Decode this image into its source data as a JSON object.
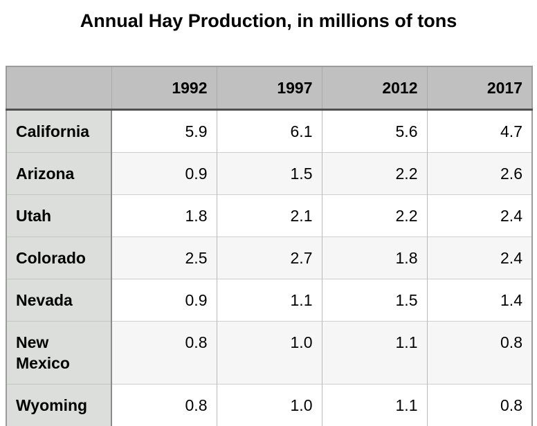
{
  "title": "Annual Hay Production, in millions of tons",
  "colors": {
    "header_bg": "#bfc0bf",
    "label_column_bg": "#dcdedc",
    "alt_row_bg": "#f5f6f5",
    "row_bg": "#ffffff",
    "header_rule": "#4e4e4e",
    "table_border": "#9b9b9b",
    "text": "#000000"
  },
  "table": {
    "columns": [
      "",
      "1992",
      "1997",
      "2012",
      "2017"
    ],
    "rows": [
      {
        "label": "California",
        "values": [
          "5.9",
          "6.1",
          "5.6",
          "4.7"
        ]
      },
      {
        "label": "Arizona",
        "values": [
          "0.9",
          "1.5",
          "2.2",
          "2.6"
        ]
      },
      {
        "label": "Utah",
        "values": [
          "1.8",
          "2.1",
          "2.2",
          "2.4"
        ]
      },
      {
        "label": "Colorado",
        "values": [
          "2.5",
          "2.7",
          "1.8",
          "2.4"
        ]
      },
      {
        "label": "Nevada",
        "values": [
          "0.9",
          "1.1",
          "1.5",
          "1.4"
        ]
      },
      {
        "label": "New Mexico",
        "values": [
          "0.8",
          "1.0",
          "1.1",
          "0.8"
        ]
      },
      {
        "label": "Wyoming",
        "values": [
          "0.8",
          "1.0",
          "1.1",
          "0.8"
        ]
      }
    ]
  },
  "chart_data": {
    "type": "table",
    "title": "Annual Hay Production, in millions of tons",
    "categories": [
      "1992",
      "1997",
      "2012",
      "2017"
    ],
    "series": [
      {
        "name": "California",
        "values": [
          5.9,
          6.1,
          5.6,
          4.7
        ]
      },
      {
        "name": "Arizona",
        "values": [
          0.9,
          1.5,
          2.2,
          2.6
        ]
      },
      {
        "name": "Utah",
        "values": [
          1.8,
          2.1,
          2.2,
          2.4
        ]
      },
      {
        "name": "Colorado",
        "values": [
          2.5,
          2.7,
          1.8,
          2.4
        ]
      },
      {
        "name": "Nevada",
        "values": [
          0.9,
          1.1,
          1.5,
          1.4
        ]
      },
      {
        "name": "New Mexico",
        "values": [
          0.8,
          1.0,
          1.1,
          0.8
        ]
      },
      {
        "name": "Wyoming",
        "values": [
          0.8,
          1.0,
          1.1,
          0.8
        ]
      }
    ]
  }
}
